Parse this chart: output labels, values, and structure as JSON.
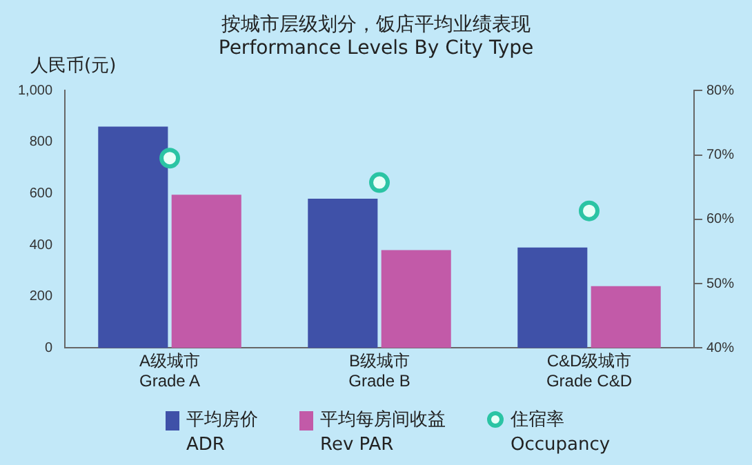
{
  "chart_data": {
    "type": "bar",
    "title": "按城市层级划分，饭店平均业绩表现\nPerformance Levels By City Type",
    "ylabel": "人民币(元)",
    "categories": [
      "A级城市\nGrade A",
      "B级城市\nGrade B",
      "C&D级城市\nGrade C&D"
    ],
    "series": [
      {
        "name": "平均房价\nADR",
        "color": "#3f51a8",
        "values": [
          860,
          580,
          390
        ]
      },
      {
        "name": "平均每房间收益\nRev PAR",
        "color": "#c25aa8",
        "values": [
          595,
          380,
          240
        ]
      },
      {
        "name": "住宿率\nOccupancy",
        "type": "scatter",
        "axis": "y2",
        "color": "#2bc4a4",
        "values": [
          69.5,
          65.7,
          61.3
        ]
      }
    ],
    "ylim": [
      0,
      1000
    ],
    "yticks": [
      0,
      200,
      400,
      600,
      800,
      {
        "value": 1000,
        "label": "1,000"
      }
    ],
    "y2lim": [
      40,
      80
    ],
    "y2ticks": [
      {
        "value": 40,
        "label": "40%"
      },
      {
        "value": 50,
        "label": "50%"
      },
      {
        "value": 60,
        "label": "60%"
      },
      {
        "value": 70,
        "label": "70%"
      },
      {
        "value": 80,
        "label": "80%"
      }
    ],
    "grid": false,
    "legend": "bottom",
    "marker": "circle"
  }
}
